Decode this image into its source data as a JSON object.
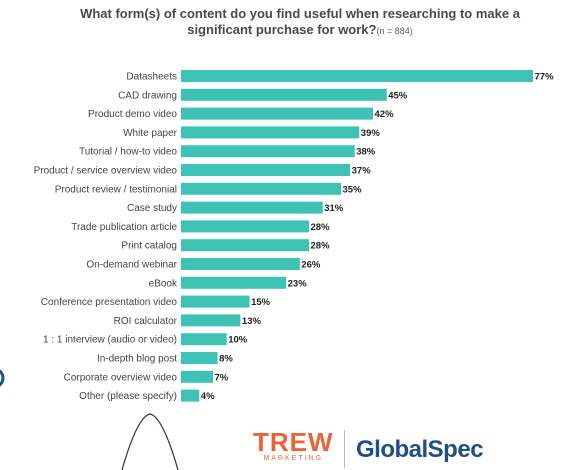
{
  "title": {
    "line1": "What form(s) of content do you find useful when researching to make a",
    "line2": "significant purchase for work?",
    "sample": "(n = 884)"
  },
  "chart_data": {
    "type": "bar",
    "orientation": "horizontal",
    "color": "#3ec2b4",
    "categories": [
      "Datasheets",
      "CAD drawing",
      "Product demo video",
      "White paper",
      "Tutorial / how-to video",
      "Product / service overview video",
      "Product review / testimonial",
      "Case study",
      "Trade publication article",
      "Print catalog",
      "On-demand webinar",
      "eBook",
      "Conference presentation video",
      "ROI calculator",
      "1 : 1 interview (audio or video)",
      "In-depth blog post",
      "Corporate overview video",
      "Other (please specify)"
    ],
    "values": [
      77,
      45,
      42,
      39,
      38,
      37,
      35,
      31,
      28,
      28,
      26,
      23,
      15,
      13,
      10,
      8,
      7,
      4
    ],
    "value_suffix": "%",
    "xlim": [
      0,
      77
    ]
  },
  "logos": {
    "trew": "TREW",
    "trew_sub": "MARKETING",
    "globalspec": "GlobalSpec",
    "trew_color": "#e8643a",
    "globalspec_color": "#1f4e8c"
  }
}
